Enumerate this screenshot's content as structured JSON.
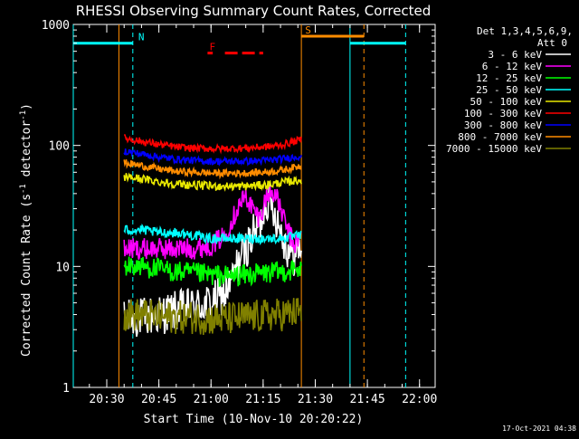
{
  "chart_data": {
    "type": "line",
    "title": "RHESSI Observing Summary Count Rates, Corrected",
    "xlabel": "Start Time (10-Nov-10 20:20:22)",
    "ylabel": "Corrected Count Rate (s⁻¹ detector⁻¹)",
    "ylabel_main": "Corrected Count Rate (s",
    "ylabel_sup1": "-1",
    "ylabel_mid": " detector",
    "ylabel_sup2": "-1",
    "ylabel_end": ")",
    "yscale": "log",
    "ylim": [
      1,
      1000
    ],
    "yticks": [
      {
        "v": 1,
        "label": "1"
      },
      {
        "v": 10,
        "label": "10"
      },
      {
        "v": 100,
        "label": "100"
      },
      {
        "v": 1000,
        "label": "1000"
      }
    ],
    "xlim": [
      "20:20:22",
      "22:04:30"
    ],
    "xticks": [
      {
        "t": "20:30",
        "label": "20:30"
      },
      {
        "t": "20:45",
        "label": "20:45"
      },
      {
        "t": "21:00",
        "label": "21:00"
      },
      {
        "t": "21:15",
        "label": "21:15"
      },
      {
        "t": "21:30",
        "label": "21:30"
      },
      {
        "t": "21:45",
        "label": "21:45"
      },
      {
        "t": "22:00",
        "label": "22:00"
      }
    ],
    "legend_placement": "right",
    "legend_header": [
      "Det 1,3,4,5,6,9,",
      "Att 0"
    ],
    "grid": false,
    "series": [
      {
        "name": "3 - 6 keV",
        "color": "#ffffff",
        "x": [
          "20:35",
          "20:40",
          "20:45",
          "20:50",
          "20:55",
          "21:00",
          "21:04",
          "21:06",
          "21:08",
          "21:10",
          "21:12",
          "21:14",
          "21:16",
          "21:18",
          "21:20",
          "21:22",
          "21:24",
          "21:26"
        ],
        "values": [
          3.6,
          3.8,
          4.0,
          4.3,
          4.6,
          5.0,
          6.0,
          7.5,
          11,
          14,
          18,
          22,
          36,
          30,
          20,
          14,
          12,
          15
        ]
      },
      {
        "name": "6 - 12 keV",
        "color": "#ff00ff",
        "x": [
          "20:35",
          "20:40",
          "20:45",
          "20:50",
          "20:55",
          "21:00",
          "21:04",
          "21:06",
          "21:08",
          "21:10",
          "21:12",
          "21:14",
          "21:16",
          "21:18",
          "21:20",
          "21:22",
          "21:24",
          "21:26"
        ],
        "values": [
          14,
          14,
          14,
          14,
          14,
          15,
          18,
          24,
          32,
          38,
          30,
          25,
          38,
          42,
          30,
          20,
          15,
          18
        ]
      },
      {
        "name": "12 - 25 keV",
        "color": "#00ff00",
        "x": [
          "20:35",
          "20:40",
          "20:45",
          "20:50",
          "20:55",
          "21:00",
          "21:05",
          "21:10",
          "21:15",
          "21:20",
          "21:26"
        ],
        "values": [
          10,
          10,
          9.5,
          9,
          8.8,
          8.5,
          8.3,
          8.5,
          8.8,
          9,
          9.5
        ]
      },
      {
        "name": "25 - 50 keV",
        "color": "#00ffff",
        "x": [
          "20:35",
          "20:40",
          "20:45",
          "20:50",
          "20:55",
          "21:00",
          "21:05",
          "21:10",
          "21:15",
          "21:20",
          "21:26"
        ],
        "values": [
          20,
          20,
          19,
          19,
          18,
          17,
          17,
          17,
          17,
          17,
          18
        ]
      },
      {
        "name": "50 - 100 keV",
        "color": "#e8e800",
        "x": [
          "20:35",
          "20:40",
          "20:45",
          "20:50",
          "20:55",
          "21:00",
          "21:05",
          "21:10",
          "21:15",
          "21:20",
          "21:26"
        ],
        "values": [
          55,
          53,
          50,
          48,
          47,
          46,
          46,
          46,
          47,
          49,
          52
        ]
      },
      {
        "name": "100 - 300 keV",
        "color": "#ff0000",
        "x": [
          "20:35",
          "20:40",
          "20:45",
          "20:50",
          "20:55",
          "21:00",
          "21:05",
          "21:10",
          "21:15",
          "21:20",
          "21:26"
        ],
        "values": [
          115,
          108,
          102,
          97,
          95,
          94,
          94,
          95,
          97,
          100,
          112
        ]
      },
      {
        "name": "300 - 800 keV",
        "color": "#0000ff",
        "x": [
          "20:35",
          "20:40",
          "20:45",
          "20:50",
          "20:55",
          "21:00",
          "21:05",
          "21:10",
          "21:15",
          "21:20",
          "21:26"
        ],
        "values": [
          90,
          85,
          80,
          77,
          75,
          74,
          74,
          74,
          75,
          77,
          82
        ]
      },
      {
        "name": "800 - 7000 keV",
        "color": "#ff8c00",
        "x": [
          "20:35",
          "20:40",
          "20:45",
          "20:50",
          "20:55",
          "21:00",
          "21:05",
          "21:10",
          "21:15",
          "21:20",
          "21:26"
        ],
        "values": [
          72,
          68,
          64,
          61,
          60,
          59,
          59,
          59,
          60,
          62,
          68
        ]
      },
      {
        "name": "7000 - 15000 keV",
        "color": "#808000",
        "x": [
          "20:35",
          "20:40",
          "20:45",
          "20:50",
          "20:55",
          "21:00",
          "21:05",
          "21:10",
          "21:15",
          "21:20",
          "21:26"
        ],
        "values": [
          4.0,
          4.0,
          3.8,
          3.8,
          3.8,
          3.7,
          3.7,
          3.8,
          3.9,
          4.0,
          4.2
        ]
      }
    ],
    "flags": [
      {
        "label": "N",
        "color": "#00ffff",
        "label_at": "20:37:30",
        "segments": [
          [
            "20:20:22",
            "20:37:30"
          ],
          [
            "21:40:00",
            "21:56:00"
          ]
        ],
        "level": 700
      },
      {
        "label": "S",
        "color": "#ff8c00",
        "label_at": "21:25:30",
        "segments": [
          [
            "21:26:00",
            "21:44:00"
          ]
        ],
        "level": 800
      },
      {
        "label": "F",
        "color": "#ff0000",
        "label_at": "20:58:00",
        "segments": [
          [
            "20:59:00",
            "21:00:30"
          ],
          [
            "21:04:00",
            "21:15:00"
          ]
        ],
        "level": 580
      }
    ],
    "verticals": [
      {
        "t": "20:20:22",
        "color": "#00ffff",
        "style": "solid"
      },
      {
        "t": "20:33:30",
        "color": "#ff8c00",
        "style": "solid"
      },
      {
        "t": "20:37:30",
        "color": "#00ffff",
        "style": "dashed"
      },
      {
        "t": "21:26:00",
        "color": "#ff8c00",
        "style": "solid"
      },
      {
        "t": "21:40:00",
        "color": "#00ffff",
        "style": "solid"
      },
      {
        "t": "21:44:00",
        "color": "#ff8c00",
        "style": "dashed"
      },
      {
        "t": "21:56:00",
        "color": "#00ffff",
        "style": "dashed"
      }
    ],
    "data_range": [
      "20:33:30",
      "21:26:00"
    ]
  },
  "footer": {
    "timestamp": "17-Oct-2021 04:38"
  }
}
